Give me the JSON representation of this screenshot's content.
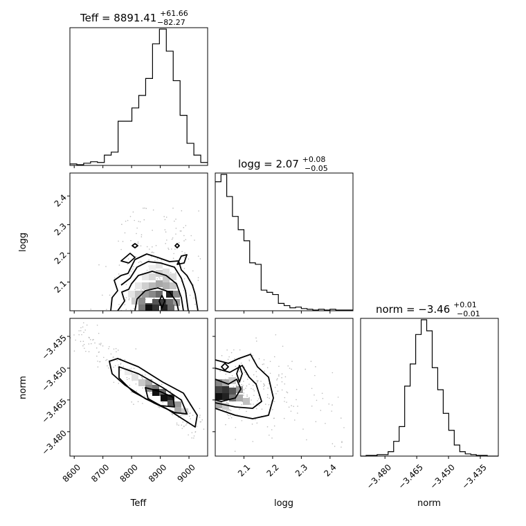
{
  "chart_data": {
    "type": "corner",
    "parameters": [
      "Teff",
      "logg",
      "norm"
    ],
    "titles": {
      "teff": {
        "main": "Teff = 8891.41",
        "sup": "+61.66",
        "sub": "−82.27"
      },
      "logg": {
        "main": "logg = 2.07",
        "sup": "+0.08",
        "sub": "−0.05"
      },
      "norm": {
        "main": "norm = −3.46",
        "sup": "+0.01",
        "sub": "−0.01"
      }
    },
    "labels": {
      "teff": "Teff",
      "logg": "logg",
      "norm": "norm"
    },
    "ranges": {
      "teff": [
        8585,
        9065
      ],
      "logg": [
        2.0,
        2.48
      ],
      "norm": [
        -3.4915,
        -3.4265
      ]
    },
    "ticks": {
      "teff": [
        8600,
        8700,
        8800,
        8900,
        9000
      ],
      "logg": [
        2.1,
        2.2,
        2.3,
        2.4
      ],
      "norm": [
        -3.48,
        -3.465,
        -3.45,
        -3.435
      ]
    },
    "tick_labels": {
      "teff": [
        "8600",
        "8700",
        "8800",
        "8900",
        "9000"
      ],
      "logg": [
        "2.1",
        "2.2",
        "2.3",
        "2.4"
      ],
      "norm": [
        "−3.480",
        "−3.465",
        "−3.450",
        "−3.435"
      ],
      "norm_diag": [
        "−3.480",
        "−3.465",
        "−3.450",
        "−3.435"
      ]
    },
    "histograms": {
      "teff": {
        "edges": [
          8585,
          8609,
          8633,
          8657,
          8681,
          8705,
          8729,
          8753,
          8777,
          8801,
          8825,
          8849,
          8873,
          8897,
          8921,
          8945,
          8969,
          8993,
          9017,
          9041,
          9065
        ],
        "counts": [
          2,
          1,
          3,
          5,
          4,
          14,
          18,
          60,
          60,
          78,
          95,
          118,
          165,
          185,
          155,
          115,
          68,
          30,
          14,
          4
        ]
      },
      "logg": {
        "edges": [
          2.0,
          2.02,
          2.04,
          2.06,
          2.08,
          2.1,
          2.12,
          2.14,
          2.16,
          2.18,
          2.2,
          2.22,
          2.24,
          2.26,
          2.28,
          2.3,
          2.32,
          2.34,
          2.36,
          2.38,
          2.4,
          2.42,
          2.44,
          2.46,
          2.48
        ],
        "counts": [
          175,
          185,
          155,
          128,
          110,
          95,
          65,
          63,
          28,
          25,
          22,
          10,
          7,
          4,
          5,
          3,
          2,
          1,
          2,
          1,
          2,
          1,
          1,
          1
        ]
      },
      "norm": {
        "edges": [
          -3.4915,
          -3.4889,
          -3.4863,
          -3.4837,
          -3.4811,
          -3.4785,
          -3.4759,
          -3.4733,
          -3.4707,
          -3.4681,
          -3.4655,
          -3.4629,
          -3.4603,
          -3.4577,
          -3.4551,
          -3.4525,
          -3.4499,
          -3.4473,
          -3.4447,
          -3.4421,
          -3.4395,
          -3.4369,
          -3.4343,
          -3.4317,
          -3.4291,
          -3.4265
        ],
        "counts": [
          0,
          1,
          1,
          2,
          2,
          6,
          20,
          40,
          95,
          125,
          165,
          185,
          170,
          120,
          90,
          58,
          35,
          15,
          6,
          3,
          2,
          1,
          1,
          0,
          0
        ]
      }
    },
    "grid": false,
    "legend": "none"
  }
}
